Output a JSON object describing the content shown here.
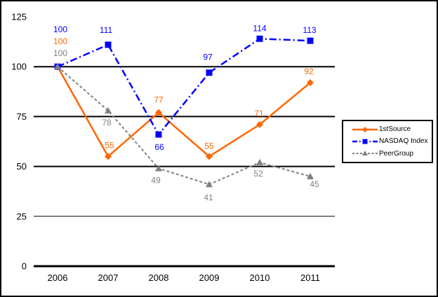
{
  "window": {
    "background": "#ffffff",
    "border_color": "#000000"
  },
  "chart_data": {
    "type": "line",
    "title": "",
    "xlabel": "",
    "ylabel": "",
    "categories": [
      "2006",
      "2007",
      "2008",
      "2009",
      "2010",
      "2011"
    ],
    "series": [
      {
        "name": "1stSource",
        "color": "#ff6600",
        "marker": "diamond",
        "line_style": "solid",
        "line_width": 2.5,
        "values": [
          100,
          55,
          77,
          55,
          71,
          92
        ]
      },
      {
        "name": "NASDAQ Index",
        "color": "#0000ff",
        "marker": "square",
        "line_style": "dash-dot",
        "line_width": 2.5,
        "values": [
          100,
          111,
          66,
          97,
          114,
          113
        ]
      },
      {
        "name": "PeerGroup",
        "color": "#808080",
        "marker": "triangle",
        "line_style": "dashed",
        "line_width": 2,
        "values": [
          100,
          78,
          49,
          41,
          52,
          45
        ]
      }
    ],
    "yticks": [
      0,
      25,
      50,
      75,
      100,
      125
    ],
    "ylim": [
      0,
      125
    ],
    "grid": "horizontal-black",
    "axis_color": "#000000",
    "legend_position": "middle-right",
    "show_data_labels": true,
    "label_offsets": [
      [
        [
          4,
          -32
        ],
        [
          2,
          -12
        ],
        [
          0,
          -14
        ],
        [
          0,
          -11
        ],
        [
          -1,
          -12
        ],
        [
          -2,
          -12
        ]
      ],
      [
        [
          4,
          -49
        ],
        [
          -3,
          -17
        ],
        [
          1,
          22
        ],
        [
          -2,
          -18
        ],
        [
          0,
          -11
        ],
        [
          -1,
          -11
        ]
      ],
      [
        [
          4,
          -15
        ],
        [
          -2,
          21
        ],
        [
          -4,
          21
        ],
        [
          -1,
          23
        ],
        [
          -2,
          20
        ],
        [
          6,
          15
        ]
      ]
    ]
  }
}
